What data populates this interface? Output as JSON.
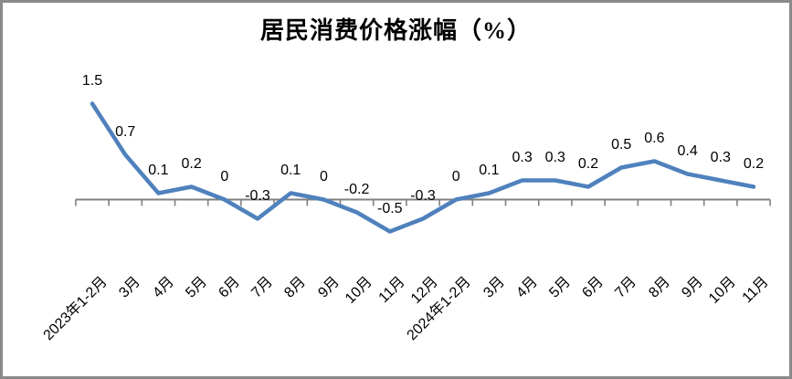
{
  "chart_data": {
    "type": "line",
    "title": "居民消费价格涨幅（%）",
    "categories": [
      "2023年1-2月",
      "3月",
      "4月",
      "5月",
      "6月",
      "7月",
      "8月",
      "9月",
      "10月",
      "11月",
      "12月",
      "2024年1-2月",
      "3月",
      "4月",
      "5月",
      "6月",
      "7月",
      "8月",
      "9月",
      "10月",
      "11月"
    ],
    "values": [
      1.5,
      0.7,
      0.1,
      0.2,
      0,
      -0.3,
      0.1,
      0,
      -0.2,
      -0.5,
      -0.3,
      0,
      0.1,
      0.3,
      0.3,
      0.2,
      0.5,
      0.6,
      0.4,
      0.3,
      0.2
    ],
    "data_labels": [
      "1.5",
      "0.7",
      "0.1",
      "0.2",
      "0",
      "-0.3",
      "0.1",
      "0",
      "-0.2",
      "-0.5",
      "-0.3",
      "0",
      "0.1",
      "0.3",
      "0.3",
      "0.2",
      "0.5",
      "0.6",
      "0.4",
      "0.3",
      "0.2"
    ],
    "xlabel": "",
    "ylabel": "",
    "ylim": [
      -1,
      2
    ],
    "grid": false,
    "legend_position": "none",
    "x_label_rotation_deg": -45,
    "line_color": "#4F81BD",
    "axis_color": "#808080",
    "label_color": "#000000",
    "frame_border_color": "#8a8a8a"
  }
}
